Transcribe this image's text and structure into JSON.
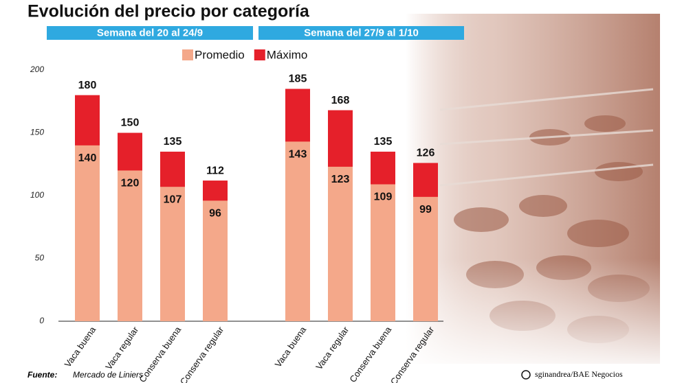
{
  "title": "Evolución del precio por categoría",
  "source_label": "Fuente:",
  "source": "Mercado de Liniers",
  "credit": "sginandrea/BAE Negocios",
  "chart_data": [
    {
      "type": "bar",
      "title": "Semana del 20 al 24/9",
      "categories": [
        "Vaca buena",
        "Vaca regular",
        "Conserva buena",
        "Conserva regular"
      ],
      "series": [
        {
          "name": "Promedio",
          "color": "#f4a88a",
          "values": [
            140,
            120,
            107,
            96
          ]
        },
        {
          "name": "Máximo",
          "color": "#e5202a",
          "values": [
            180,
            150,
            135,
            112
          ]
        }
      ],
      "ylim": [
        0,
        200
      ],
      "yticks": [
        0,
        50,
        100,
        150,
        200
      ]
    },
    {
      "type": "bar",
      "title": "Semana del 27/9 al 1/10",
      "categories": [
        "Vaca buena",
        "Vaca regular",
        "Conserva buena",
        "Conserva regular"
      ],
      "series": [
        {
          "name": "Promedio",
          "color": "#f4a88a",
          "values": [
            143,
            123,
            109,
            99
          ]
        },
        {
          "name": "Máximo",
          "color": "#e5202a",
          "values": [
            185,
            168,
            135,
            126
          ]
        }
      ],
      "ylim": [
        0,
        200
      ]
    }
  ]
}
